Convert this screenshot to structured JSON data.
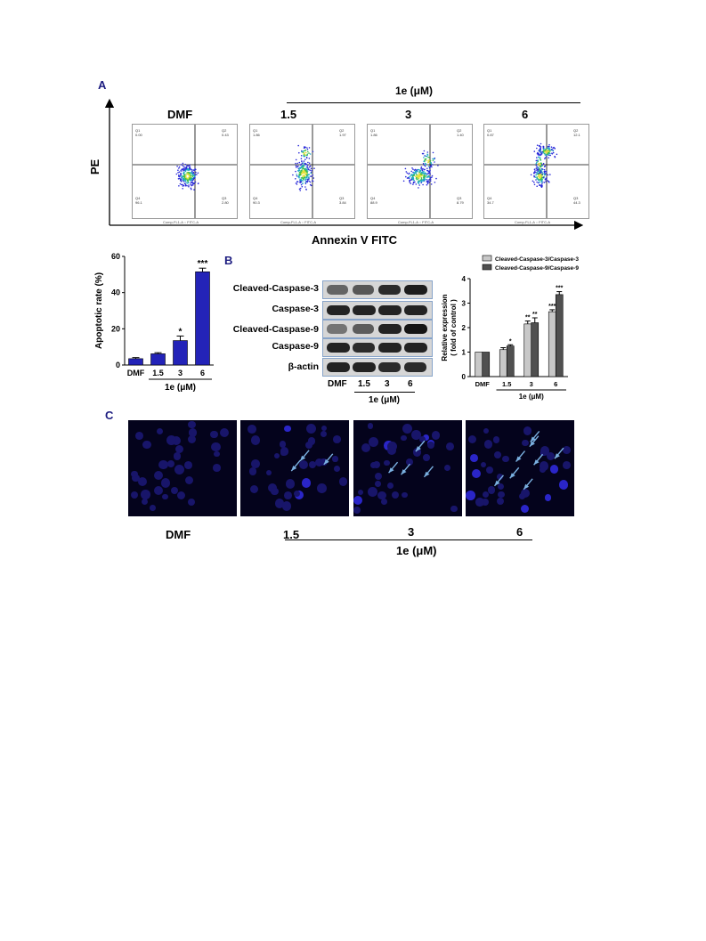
{
  "panel_a": {
    "letter": "A",
    "treatment_label": "1e (μM)",
    "y_axis_label": "PE",
    "x_axis_label": "Annexin V FITC",
    "plots": [
      {
        "title": "DMF",
        "q1": "0.00",
        "q2": "0.43",
        "q3": "2.80",
        "q4": "96.1",
        "xlab": "Comp-FL1-A :: FITC-A",
        "ylab": "Comp-PL2-H :: PE-H"
      },
      {
        "title": "1.5",
        "q1": "1.86",
        "q2": "1.97",
        "q3": "3.84",
        "q4": "90.3",
        "xlab": "Comp-FL1-A :: FITC-A",
        "ylab": "Comp-PL2-H :: PE-H"
      },
      {
        "title": "3",
        "q1": "1.86",
        "q2": "1.40",
        "q3": "8.79",
        "q4": "88.9",
        "xlab": "Comp-FL1-A :: FITC-A",
        "ylab": "Comp-PL2-H :: PE-H"
      },
      {
        "title": "6",
        "q1": "0.87",
        "q2": "12.1",
        "q3": "44.3",
        "q4": "34.7",
        "xlab": "Comp-FL1-A :: FITC-A",
        "ylab": "Comp-PL2-H :: PE-H"
      }
    ]
  },
  "panel_b": {
    "letter": "B",
    "blot_labels": [
      "Cleaved-Caspase-3",
      "Caspase-3",
      "Cleaved-Caspase-9",
      "Caspase-9",
      "β-actin"
    ],
    "lane_labels": [
      "DMF",
      "1.5",
      "3",
      "6"
    ],
    "treatment_label": "1e (μM)",
    "band_intensity": [
      [
        0.45,
        0.55,
        0.85,
        0.95
      ],
      [
        0.9,
        0.9,
        0.9,
        0.9
      ],
      [
        0.35,
        0.5,
        0.9,
        1.0
      ],
      [
        0.9,
        0.85,
        0.9,
        0.9
      ],
      [
        0.9,
        0.9,
        0.85,
        0.85
      ]
    ]
  },
  "panel_c": {
    "letter": "C",
    "labels": [
      "DMF",
      "1.5",
      "3",
      "6"
    ],
    "treatment_label": "1e (μM)"
  },
  "chart_data": [
    {
      "type": "bar",
      "categories": [
        "DMF",
        "1.5",
        "3",
        "6"
      ],
      "values": [
        3.5,
        6.2,
        13.5,
        51.5
      ],
      "errors": [
        0.6,
        0.6,
        2.5,
        2.0
      ],
      "significance": [
        "",
        "",
        "*",
        "***"
      ],
      "ylabel": "Apoptotic rate (%)",
      "xgroup_label": "1e (μM)",
      "ylim": [
        0,
        60
      ],
      "yticks": [
        "0",
        "20",
        "40",
        "60"
      ],
      "bar_color": "#2323b8"
    },
    {
      "type": "bar",
      "categories": [
        "DMF",
        "1.5",
        "3",
        "6"
      ],
      "series": [
        {
          "name": "Cleaved-Caspase-3/Caspase-3",
          "values": [
            1.0,
            1.1,
            2.15,
            2.65
          ],
          "errors": [
            0.0,
            0.08,
            0.12,
            0.08
          ],
          "color": "#c8c8c8"
        },
        {
          "name": "Cleaved-Caspase-9/Caspase-9",
          "values": [
            1.0,
            1.25,
            2.2,
            3.35
          ],
          "errors": [
            0.0,
            0.05,
            0.2,
            0.12
          ],
          "color": "#505050"
        }
      ],
      "significance": [
        [
          "",
          ""
        ],
        [
          "",
          "*"
        ],
        [
          "**",
          "**"
        ],
        [
          "***",
          "***"
        ]
      ],
      "ylabel": "Relative expression",
      "ylabel2": "( fold of control )",
      "xgroup_label": "1e (μM)",
      "ylim": [
        0,
        4
      ],
      "yticks": [
        "0",
        "1",
        "2",
        "3",
        "4"
      ],
      "legend_position": "top"
    }
  ]
}
